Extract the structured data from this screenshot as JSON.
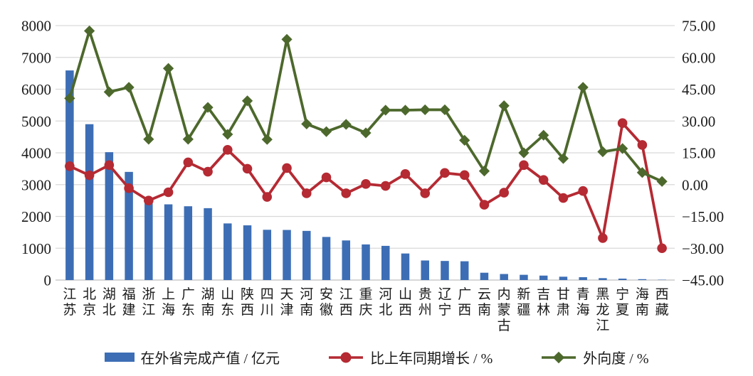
{
  "chart_data": {
    "type": "bar",
    "subtype": "bar-line-combo",
    "title": "",
    "categories": [
      "江苏",
      "北京",
      "湖北",
      "福建",
      "浙江",
      "上海",
      "广东",
      "湖南",
      "山东",
      "陕西",
      "四川",
      "天津",
      "河南",
      "安徽",
      "江西",
      "重庆",
      "河北",
      "山西",
      "贵州",
      "辽宁",
      "广西",
      "云南",
      "内蒙古",
      "新疆",
      "吉林",
      "甘肃",
      "青海",
      "黑龙江",
      "宁夏",
      "海南",
      "西藏"
    ],
    "series": [
      {
        "name": "在外省完成产值 / 亿元",
        "type": "bar",
        "axis": "left",
        "marker": "rect",
        "color": "#3d6eb5",
        "values": [
          6590,
          4900,
          4020,
          3400,
          2410,
          2380,
          2320,
          2260,
          1780,
          1720,
          1580,
          1575,
          1545,
          1355,
          1245,
          1120,
          1075,
          835,
          615,
          600,
          590,
          230,
          190,
          165,
          140,
          105,
          90,
          60,
          45,
          28,
          10
        ]
      },
      {
        "name": "比上年同期增长 / %",
        "type": "line",
        "axis": "right",
        "marker": "circle",
        "color": "#b52a33",
        "values": [
          8.7,
          4.4,
          9.2,
          -1.7,
          -7.5,
          -3.6,
          10.5,
          6.1,
          16.4,
          7.5,
          -5.8,
          7.8,
          -4.1,
          3.4,
          -4.1,
          0.3,
          -0.6,
          5.0,
          -4.1,
          5.5,
          4.5,
          -9.5,
          -3.8,
          9.2,
          2.2,
          -6.3,
          -3.0,
          -25.2,
          29.0,
          18.7,
          -30.0
        ]
      },
      {
        "name": "外向度 / %",
        "type": "line",
        "axis": "right",
        "marker": "diamond",
        "color": "#4d682c",
        "values": [
          40.7,
          72.5,
          43.7,
          45.9,
          21.4,
          54.8,
          21.4,
          36.4,
          23.7,
          39.5,
          21.3,
          68.5,
          28.6,
          25.0,
          28.4,
          24.4,
          35.1,
          35.1,
          35.3,
          35.3,
          20.9,
          6.4,
          37.2,
          15.0,
          23.3,
          12.3,
          45.9,
          15.5,
          17.0,
          5.7,
          1.5
        ]
      }
    ],
    "left_axis": {
      "min": 0,
      "max": 8000,
      "step": 1000,
      "ticks": [
        "8000",
        "7000",
        "6000",
        "5000",
        "4000",
        "3000",
        "2000",
        "1000",
        "0"
      ]
    },
    "right_axis": {
      "min": -45,
      "max": 75,
      "step": 15,
      "ticks": [
        "75.00",
        "60.00",
        "45.00",
        "30.00",
        "15.00",
        "0.00",
        "−15.00",
        "−30.00",
        "−45.00"
      ]
    },
    "grid": true,
    "gridline_color": "#d9d9d9",
    "baseline_color": "#bfbfbf",
    "text_color": "#1a1a1a",
    "legend_position": "bottom"
  }
}
